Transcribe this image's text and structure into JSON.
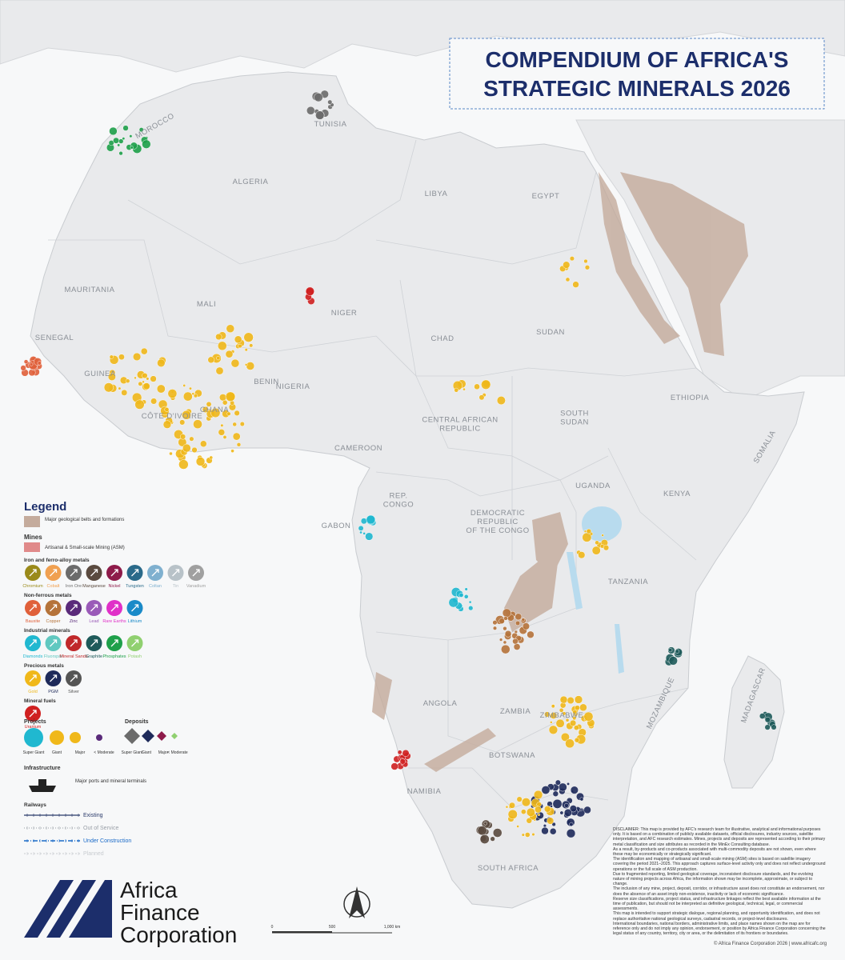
{
  "title": [
    "COMPENDIUM OF AFRICA'S",
    "STRATEGIC MINERALS 2026"
  ],
  "countries": [
    [
      "MOROCCO"
    ],
    [
      "TUNISIA"
    ],
    [
      "ALGERIA"
    ],
    [
      "LIBYA"
    ],
    [
      "EGYPT"
    ],
    [
      "MAURITANIA"
    ],
    [
      "MALI"
    ],
    [
      "NIGER"
    ],
    [
      "CHAD"
    ],
    [
      "SUDAN"
    ],
    [
      "SENEGAL"
    ],
    [
      "GUINEA"
    ],
    [
      "CÔTE D'IVOIRE"
    ],
    [
      "GHANA"
    ],
    [
      "BENIN"
    ],
    [
      "NIGERIA"
    ],
    [
      "CENTRAL AFRICAN",
      "REPUBLIC"
    ],
    [
      "SOUTH",
      "SUDAN"
    ],
    [
      "ETHIOPIA"
    ],
    [
      "SOMALIA"
    ],
    [
      "CAMEROON"
    ],
    [
      "GABON"
    ],
    [
      "REP.",
      "CONGO"
    ],
    [
      "DEMOCRATIC",
      "REPUBLIC",
      "OF THE CONGO"
    ],
    [
      "UGANDA"
    ],
    [
      "KENYA"
    ],
    [
      "TANZANIA"
    ],
    [
      "ANGOLA"
    ],
    [
      "ZAMBIA"
    ],
    [
      "MOZAMBIQUE"
    ],
    [
      "ZIMBABWE"
    ],
    [
      "BOTSWANA"
    ],
    [
      "NAMIBIA"
    ],
    [
      "SOUTH AFRICA"
    ],
    [
      "MADAGASCAR"
    ]
  ],
  "legend": {
    "title": "Legend",
    "belts": "Major geological belts and formations",
    "mines": "Mines",
    "asm": "Artisanal & Small-scale Mining (ASM)",
    "groups": [
      {
        "name": "Iron and ferro-alloy metals",
        "items": [
          {
            "name": "Chromium",
            "color": "#9a8a1a"
          },
          {
            "name": "Cobalt",
            "color": "#f0a050"
          },
          {
            "name": "Iron Ore",
            "color": "#6b6b6b"
          },
          {
            "name": "Manganese",
            "color": "#5a4a3f"
          },
          {
            "name": "Nickel",
            "color": "#8e1b4a"
          },
          {
            "name": "Tungsten",
            "color": "#2a6a8a"
          },
          {
            "name": "Coltan",
            "color": "#7fb0cf"
          },
          {
            "name": "Tin",
            "color": "#b8c2c8"
          },
          {
            "name": "Vanadium",
            "color": "#a0a0a0"
          }
        ]
      },
      {
        "name": "Non-ferrous metals",
        "items": [
          {
            "name": "Bauxite",
            "color": "#e0603a"
          },
          {
            "name": "Copper",
            "color": "#b5733a"
          },
          {
            "name": "Zinc",
            "color": "#5a2a7a"
          },
          {
            "name": "Lead",
            "color": "#9a5ab8"
          },
          {
            "name": "Rare Earths",
            "color": "#e030c8"
          },
          {
            "name": "Lithium",
            "color": "#1a8ac8"
          }
        ]
      },
      {
        "name": "Industrial minerals",
        "items": [
          {
            "name": "Diamonds",
            "color": "#20b8d0"
          },
          {
            "name": "Fluorspar",
            "color": "#60c8c0"
          },
          {
            "name": "Mineral Sands",
            "color": "#c0282a"
          },
          {
            "name": "Graphite",
            "color": "#1e5a5a"
          },
          {
            "name": "Phosphates",
            "color": "#1ea04a"
          },
          {
            "name": "Potash",
            "color": "#90d070"
          }
        ]
      },
      {
        "name": "Precious metals",
        "items": [
          {
            "name": "Gold",
            "color": "#f0b81a"
          },
          {
            "name": "PGM",
            "color": "#1e2a5a"
          },
          {
            "name": "Silver",
            "color": "#555555"
          }
        ]
      },
      {
        "name": "Mineral fuels",
        "items": [
          {
            "name": "Uranium",
            "color": "#d02020"
          }
        ]
      }
    ],
    "projects": {
      "title": "Projects",
      "sizes": [
        "Super Giant",
        "Giant",
        "Major",
        "< Moderate"
      ]
    },
    "deposits": {
      "title": "Deposits",
      "sizes": [
        "Super Giant",
        "Giant",
        "Major",
        "< Moderate"
      ]
    },
    "infrastructure": "Infrastructure",
    "ports": "Major ports and mineral terminals",
    "railways": {
      "title": "Railways",
      "items": [
        "Existing",
        "Out of Service",
        "Under Construction",
        "Planned"
      ]
    }
  },
  "scale": [
    "0",
    "500",
    "1,000 km"
  ],
  "logo": [
    "Africa",
    "Finance",
    "Corporation"
  ],
  "disclaimer": [
    "DISCLAIMER: This map is provided by AFC's research team for illustrative, analytical and informational purposes only. It is based on a combination of publicly available datasets, official disclosures, industry sources, satellite interpretation, and AFC research estimates. Mines, projects and deposits are represented according to their primary metal classification and size attributes as recorded in the MinEx Consulting database.",
    "As a result, by-products and co-products associated with multi-commodity deposits are not shown, even where these may be economically or strategically significant.",
    "The identification and mapping of artisanal and small-scale mining (ASM) sites is based on satellite imagery covering the period 2021–2025. This approach captures surface-level activity only and does not reflect underground operations or the full scale of ASM production.",
    "Due to fragmented reporting, limited geological coverage, inconsistent disclosure standards, and the evolving nature of mining projects across Africa, the information shown may be incomplete, approximate, or subject to change.",
    "The inclusion of any mine, project, deposit, corridor, or infrastructure asset does not constitute an endorsement, nor does the absence of an asset imply non-existence, inactivity or lack of economic significance.",
    "Reserve size classifications, project status, and infrastructure linkages reflect the best available information at the time of publication, but should not be interpreted as definitive geological, technical, legal, or commercial assessments.",
    "This map is intended to support strategic dialogue, regional planning, and opportunity identification, and does not replace authoritative national geological surveys, cadastral records, or project-level disclosures.",
    "International boundaries, national borders, administrative limits, and place names shown on the map are for reference only and do not imply any opinion, endorsement, or position by Africa Finance Corporation concerning the legal status of any country, territory, city or area, or the delimitation of its frontiers or boundaries."
  ],
  "footer": "© Africa Finance Corporation 2026 | www.africafc.org"
}
